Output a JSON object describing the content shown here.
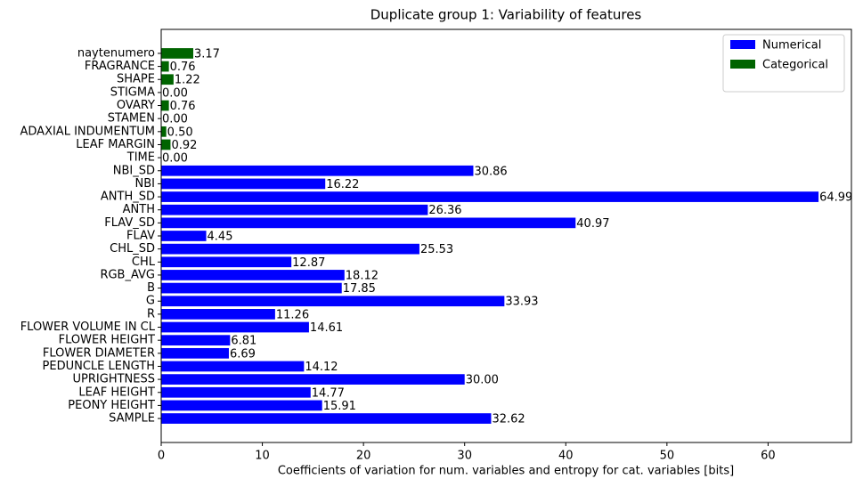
{
  "chart_data": {
    "type": "barh",
    "title": "Duplicate group 1: Variability of features",
    "x_label": "Coefficients of variation for num. variables and entropy for cat. variables [bits]",
    "categories": [
      "SAMPLE",
      "PEONY HEIGHT",
      "LEAF HEIGHT",
      "UPRIGHTNESS",
      "PEDUNCLE LENGTH",
      "FLOWER DIAMETER",
      "FLOWER HEIGHT",
      "FLOWER VOLUME IN CL",
      "R",
      "G",
      "B",
      "RGB_AVG",
      "CHL",
      "CHL_SD",
      "FLAV",
      "FLAV_SD",
      "ANTH",
      "ANTH_SD",
      "NBI",
      "NBI_SD",
      "TIME",
      "LEAF MARGIN",
      "ADAXIAL INDUMENTUM",
      "STAMEN",
      "OVARY",
      "STIGMA",
      "SHAPE",
      "FRAGRANCE",
      "naytenumero"
    ],
    "series": [
      {
        "name": "Numerical",
        "color": "#0000ff",
        "values": [
          32.62,
          15.91,
          14.77,
          30.0,
          14.12,
          6.69,
          6.81,
          14.61,
          11.26,
          33.93,
          17.85,
          18.12,
          12.87,
          25.53,
          4.45,
          40.97,
          26.36,
          64.99,
          16.22,
          30.86,
          null,
          null,
          null,
          null,
          null,
          null,
          null,
          null,
          null
        ],
        "value_labels": [
          "32.62",
          "15.91",
          "14.77",
          "30.00",
          "14.12",
          "6.69",
          "6.81",
          "14.61",
          "11.26",
          "33.93",
          "17.85",
          "18.12",
          "12.87",
          "25.53",
          "4.45",
          "40.97",
          "26.36",
          "64.99",
          "16.22",
          "30.86",
          null,
          null,
          null,
          null,
          null,
          null,
          null,
          null,
          null
        ]
      },
      {
        "name": "Categorical",
        "color": "#006400",
        "values": [
          null,
          null,
          null,
          null,
          null,
          null,
          null,
          null,
          null,
          null,
          null,
          null,
          null,
          null,
          null,
          null,
          null,
          null,
          null,
          null,
          0.0,
          0.92,
          0.5,
          0.0,
          0.76,
          0.0,
          1.22,
          0.76,
          3.17
        ],
        "value_labels": [
          null,
          null,
          null,
          null,
          null,
          null,
          null,
          null,
          null,
          null,
          null,
          null,
          null,
          null,
          null,
          null,
          null,
          null,
          null,
          null,
          "0.00",
          "0.92",
          "0.50",
          "0.00",
          "0.76",
          "0.00",
          "1.22",
          "0.76",
          "3.17"
        ]
      }
    ],
    "xlim": [
      0,
      68.24
    ],
    "xticks": [
      0,
      10,
      20,
      30,
      40,
      50,
      60
    ],
    "legend": "upper right"
  }
}
